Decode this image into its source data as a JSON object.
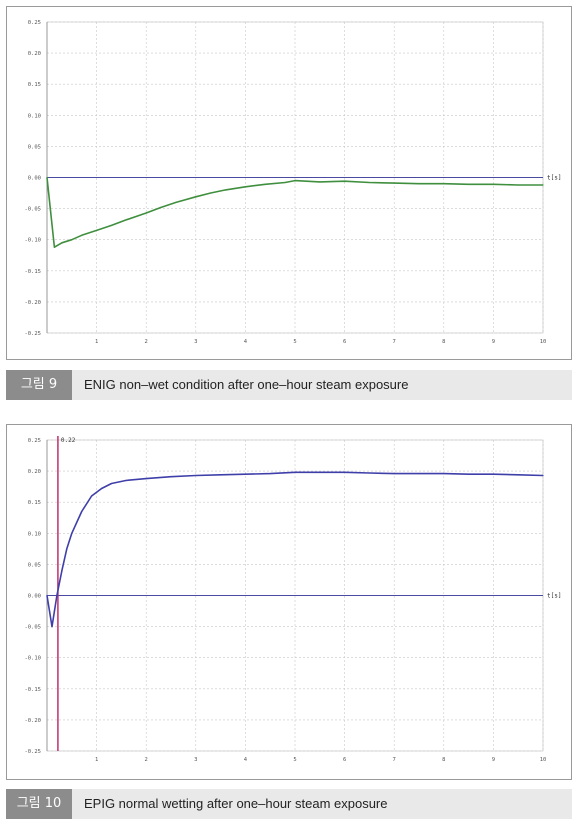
{
  "figures": [
    {
      "tag": "그림 9",
      "caption": "ENIG non–wet condition after one–hour steam exposure"
    },
    {
      "tag": "그림 10",
      "caption": "EPIG normal wetting after one–hour steam exposure"
    }
  ],
  "colors": {
    "grid": "#c8c8c8",
    "axis": "#4a4aa0",
    "series_fig9": "#3f8f3f",
    "series_fig10": "#3f3faa",
    "marker": "#c0306a"
  },
  "chart_data": [
    {
      "type": "line",
      "title": "",
      "xlabel": "t[s]",
      "ylabel": "",
      "xlim": [
        0,
        10
      ],
      "ylim": [
        -0.25,
        0.25
      ],
      "grid": true,
      "x_ticks": [
        "1",
        "2",
        "3",
        "4",
        "5",
        "6",
        "7",
        "8",
        "9",
        "10"
      ],
      "y_ticks": [
        "0.25",
        "0.20",
        "0.15",
        "0.10",
        "0.05",
        "0.00",
        "-0.05",
        "-0.10",
        "-0.15",
        "-0.20",
        "-0.25"
      ],
      "series": [
        {
          "x": [
            0,
            0.15,
            0.3,
            0.5,
            0.7,
            1.0,
            1.3,
            1.6,
            2.0,
            2.3,
            2.6,
            3.0,
            3.3,
            3.6,
            4.0,
            4.4,
            4.8,
            5.0,
            5.5,
            6.0,
            6.5,
            7.0,
            7.5,
            8.0,
            8.5,
            9.0,
            9.5,
            10.0
          ],
          "y": [
            0.0,
            -0.112,
            -0.105,
            -0.1,
            -0.093,
            -0.085,
            -0.077,
            -0.068,
            -0.057,
            -0.048,
            -0.04,
            -0.031,
            -0.025,
            -0.02,
            -0.015,
            -0.011,
            -0.008,
            -0.005,
            -0.007,
            -0.006,
            -0.008,
            -0.009,
            -0.01,
            -0.01,
            -0.011,
            -0.011,
            -0.012,
            -0.012
          ]
        }
      ]
    },
    {
      "type": "line",
      "title": "",
      "xlabel": "t[s]",
      "ylabel": "",
      "xlim": [
        0,
        10
      ],
      "ylim": [
        -0.25,
        0.25
      ],
      "grid": true,
      "x_ticks": [
        "1",
        "2",
        "3",
        "4",
        "5",
        "6",
        "7",
        "8",
        "9",
        "10"
      ],
      "y_ticks": [
        "0.25",
        "0.20",
        "0.15",
        "0.10",
        "0.05",
        "0.00",
        "-0.05",
        "-0.10",
        "-0.15",
        "-0.20",
        "-0.25"
      ],
      "marker_line": {
        "x": 0.22,
        "label": "0.22"
      },
      "series": [
        {
          "x": [
            0,
            0.1,
            0.2,
            0.3,
            0.4,
            0.5,
            0.7,
            0.9,
            1.1,
            1.3,
            1.6,
            2.0,
            2.5,
            3.0,
            3.5,
            4.0,
            4.5,
            5.0,
            5.5,
            6.0,
            6.5,
            7.0,
            7.5,
            8.0,
            8.5,
            9.0,
            9.5,
            10.0
          ],
          "y": [
            0.0,
            -0.05,
            0.0,
            0.04,
            0.075,
            0.1,
            0.135,
            0.16,
            0.172,
            0.18,
            0.185,
            0.188,
            0.191,
            0.193,
            0.194,
            0.195,
            0.196,
            0.198,
            0.198,
            0.198,
            0.197,
            0.196,
            0.196,
            0.196,
            0.195,
            0.195,
            0.194,
            0.193
          ]
        }
      ]
    }
  ]
}
